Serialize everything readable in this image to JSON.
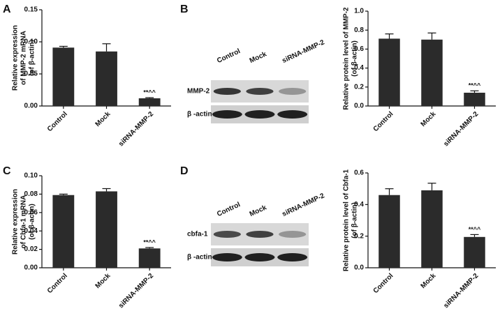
{
  "panels": [
    "A",
    "B",
    "C",
    "D"
  ],
  "blots": [
    {
      "lanes": [
        "Control",
        "Mock",
        "siRNA-MMP-2"
      ],
      "rows": [
        "MMP-2",
        "β -actin"
      ]
    },
    {
      "lanes": [
        "Control",
        "Mock",
        "siRNA-MMP-2"
      ],
      "rows": [
        "cbfa-1",
        "β -actin"
      ]
    }
  ],
  "chart_data": [
    {
      "type": "bar",
      "ylabel": [
        "Relative expression",
        "of MMP-2 mRNA",
        "(of β-actin)"
      ],
      "categories": [
        "Control",
        "Mock",
        "siRNA-MMP-2"
      ],
      "values": [
        0.091,
        0.085,
        0.012
      ],
      "errors": [
        0.002,
        0.012,
        0.001
      ],
      "annotation": "**^^",
      "color": "#2b2b2b",
      "ylim": [
        0,
        0.15
      ],
      "yticks": [
        {
          "value": 0,
          "label": "0.00"
        },
        {
          "value": 0.05,
          "label": "0.05"
        },
        {
          "value": 0.1,
          "label": "0.10"
        },
        {
          "value": 0.15,
          "label": "0.15"
        }
      ]
    },
    {
      "type": "bar",
      "ylabel": [
        "Relative protein level of MMP-2",
        "(of  β-actin)"
      ],
      "categories": [
        "Control",
        "Mock",
        "siRNA-MMP-2"
      ],
      "values": [
        0.71,
        0.7,
        0.14
      ],
      "errors": [
        0.05,
        0.07,
        0.02
      ],
      "annotation": "**^^",
      "color": "#2b2b2b",
      "ylim": [
        0,
        1.0
      ],
      "yticks": [
        {
          "value": 0,
          "label": "0.0"
        },
        0.2,
        0.4,
        0.6,
        0.8,
        {
          "value": 1,
          "label": "1.0"
        }
      ]
    },
    {
      "type": "bar",
      "ylabel": [
        "Relative expression",
        "of Cbfa-1 mRNA",
        "(of β-actin)"
      ],
      "categories": [
        "Control",
        "Mock",
        "siRNA-MMP-2"
      ],
      "values": [
        0.079,
        0.083,
        0.021
      ],
      "errors": [
        0.001,
        0.003,
        0.001
      ],
      "annotation": "**^^",
      "color": "#2b2b2b",
      "ylim": [
        0,
        0.1
      ],
      "yticks": [
        {
          "value": 0,
          "label": "0.00"
        },
        {
          "value": 0.02,
          "label": "0.02"
        },
        {
          "value": 0.04,
          "label": "0.04"
        },
        {
          "value": 0.06,
          "label": "0.06"
        },
        {
          "value": 0.08,
          "label": "0.08"
        },
        {
          "value": 0.1,
          "label": "0.10"
        }
      ]
    },
    {
      "type": "bar",
      "ylabel": [
        "Relative protein level of Cbfa-1",
        "(of  β-actin)"
      ],
      "categories": [
        "Control",
        "Mock",
        "siRNA-MMP-2"
      ],
      "values": [
        0.46,
        0.49,
        0.195
      ],
      "errors": [
        0.04,
        0.045,
        0.015
      ],
      "annotation": "**^^",
      "color": "#2b2b2b",
      "ylim": [
        0,
        0.6
      ],
      "yticks": [
        {
          "value": 0,
          "label": "0.0"
        },
        0.2,
        0.4,
        0.6
      ]
    }
  ]
}
